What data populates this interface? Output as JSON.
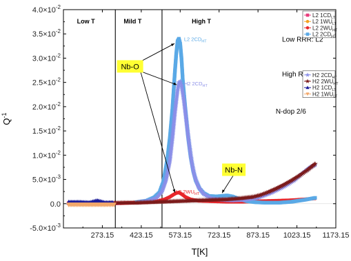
{
  "chart_data": {
    "type": "scatter",
    "xlabel": "T[K]",
    "ylabel": "Q",
    "ylabel_sup": "-1",
    "xlim": [
      123.15,
      1173.15
    ],
    "ylim": [
      -0.005,
      0.04
    ],
    "x_ticks": [
      273.15,
      423.15,
      573.15,
      723.15,
      873.15,
      1023.15,
      1173.15
    ],
    "x_tick_labels": [
      "273.15",
      "423.15",
      "573.15",
      "723.15",
      "873.15",
      "1023.15",
      "1173.15"
    ],
    "y_ticks": [
      {
        "value": -0.005,
        "mant": "-5.0×10",
        "exp": "-3"
      },
      {
        "value": 0.0,
        "mant": "0.0",
        "exp": ""
      },
      {
        "value": 0.005,
        "mant": "5.0×10",
        "exp": "-3"
      },
      {
        "value": 0.01,
        "mant": "1.0×10",
        "exp": "-2"
      },
      {
        "value": 0.015,
        "mant": "1.5×10",
        "exp": "-2"
      },
      {
        "value": 0.02,
        "mant": "2.0×10",
        "exp": "-2"
      },
      {
        "value": 0.025,
        "mant": "2.5×10",
        "exp": "-2"
      },
      {
        "value": 0.03,
        "mant": "3.0×10",
        "exp": "-2"
      },
      {
        "value": 0.035,
        "mant": "3.5×10",
        "exp": "-2"
      },
      {
        "value": 0.04,
        "mant": "4.0×10",
        "exp": "-2"
      }
    ],
    "region_dividers": [
      323.15,
      503.15
    ],
    "regions": [
      {
        "label": "Low T",
        "x": 210
      },
      {
        "label": "Mild T",
        "x": 390
      },
      {
        "label": "High T",
        "x": 655
      }
    ],
    "notes": [
      {
        "text": "Low RRR: L2",
        "x": 1045,
        "y": 0.0334
      },
      {
        "text": "High RRR: H2",
        "x": 1050,
        "y": 0.0262
      },
      {
        "text": "N-dop 2/6",
        "x": 1000,
        "y": 0.0186
      }
    ],
    "callouts": [
      {
        "text": "Nb-O",
        "x": 380,
        "y": 0.0283
      },
      {
        "text": "Nb-N",
        "x": 780,
        "y": 0.007
      }
    ],
    "series_annotations": [
      {
        "main": "L2 2CD",
        "sub": "HT",
        "x": 572,
        "y": 0.034,
        "color": "#5aa9e6"
      },
      {
        "main": "H2 2CD",
        "sub": "HT",
        "x": 572,
        "y": 0.0248,
        "color": "#8b8fe8"
      },
      {
        "main": "L2 2WU",
        "sub": "HT",
        "x": 540,
        "y": 0.0025,
        "color": "#e8262b"
      }
    ],
    "series": [
      {
        "name": "L2 1CD",
        "sub": "LT",
        "color": "#e83c7c",
        "marker": "square",
        "x": [
          143.15,
          173.15,
          213.15,
          253.15,
          293.15,
          333.15
        ],
        "y": [
          0.0001,
          0.0001,
          0.0001,
          0.0002,
          0.0001,
          0.0001
        ]
      },
      {
        "name": "L2 1WU",
        "sub": "LT",
        "color": "#f4a01f",
        "marker": "circle",
        "x": [
          143.15,
          183.15,
          223.15,
          263.15,
          303.15
        ],
        "y": [
          0.0,
          0.0001,
          0.0001,
          0.0001,
          0.0001
        ]
      },
      {
        "name": "L2 2WU",
        "sub": "HT",
        "color": "#e8262b",
        "marker": "circle",
        "x": [
          343.15,
          393.15,
          443.15,
          483.15,
          513.15,
          533.15,
          548.15,
          558.15,
          568.15,
          578.15,
          593.15,
          613.15,
          643.15,
          693.15,
          753.15,
          813.15,
          873.15,
          933.15,
          993.15,
          1053.15,
          1093.15
        ],
        "y": [
          0.0001,
          0.0002,
          0.0003,
          0.0005,
          0.0009,
          0.0014,
          0.0019,
          0.0022,
          0.0023,
          0.002,
          0.0014,
          0.0009,
          0.0006,
          0.0005,
          0.0004,
          0.0004,
          0.0005,
          0.0006,
          0.0007,
          0.0009,
          0.0011
        ]
      },
      {
        "name": "L2 2CD",
        "sub": "HT",
        "color": "#5aa9e6",
        "marker": "square",
        "x": [
          403.15,
          443.15,
          473.15,
          493.15,
          508.15,
          523.15,
          533.15,
          543.15,
          548.15,
          553.15,
          558.15,
          563.15,
          568.15,
          573.15,
          578.15,
          583.15,
          593.15,
          603.15,
          613.15,
          623.15,
          633.15,
          648.15,
          663.15,
          683.15,
          713.15,
          733.15,
          753.15,
          773.15,
          793.15,
          813.15,
          833.15,
          863.15,
          903.15,
          953.15,
          1003.15,
          1053.15,
          1093.15
        ],
        "y": [
          0.0003,
          0.0006,
          0.0013,
          0.0023,
          0.0045,
          0.009,
          0.0135,
          0.0195,
          0.0235,
          0.0275,
          0.031,
          0.0335,
          0.034,
          0.033,
          0.03,
          0.0255,
          0.0195,
          0.014,
          0.0098,
          0.0068,
          0.0048,
          0.0031,
          0.0022,
          0.0016,
          0.0015,
          0.0016,
          0.0017,
          0.0015,
          0.0011,
          0.0008,
          0.0005,
          0.0003,
          0.0002,
          0.0002,
          0.0004,
          0.0008,
          0.0012
        ]
      },
      {
        "name": "H2 2CD",
        "sub": "HT",
        "color": "#8b8fe8",
        "marker": "star",
        "x": [
          413.15,
          453.15,
          483.15,
          503.15,
          518.15,
          533.15,
          543.15,
          553.15,
          563.15,
          568.15,
          573.15,
          578.15,
          588.15,
          598.15,
          608.15,
          618.15,
          628.15,
          643.15,
          663.15,
          693.15,
          733.15,
          773.15,
          823.15,
          873.15,
          923.15,
          973.15,
          1013.15,
          1043.15,
          1073.15,
          1093.15
        ],
        "y": [
          0.0003,
          0.0006,
          0.0012,
          0.0025,
          0.0048,
          0.0088,
          0.0135,
          0.019,
          0.0235,
          0.025,
          0.0252,
          0.0245,
          0.021,
          0.0165,
          0.0122,
          0.0085,
          0.0058,
          0.0035,
          0.002,
          0.0011,
          0.0008,
          0.0007,
          0.0008,
          0.0012,
          0.0022,
          0.0035,
          0.0048,
          0.0062,
          0.0075,
          0.008
        ]
      },
      {
        "name": "H2 2WU",
        "sub": "HT",
        "color": "#7b1a1a",
        "marker": "star",
        "x": [
          303.15,
          353.15,
          403.15,
          453.15,
          503.15,
          553.15,
          603.15,
          653.15,
          703.15,
          753.15,
          803.15,
          853.15,
          883.15,
          913.15,
          943.15,
          973.15,
          1003.15,
          1033.15,
          1063.15,
          1093.15
        ],
        "y": [
          0.0001,
          0.0002,
          0.0002,
          0.0003,
          0.0004,
          0.0005,
          0.0006,
          0.0007,
          0.0008,
          0.0009,
          0.0011,
          0.0014,
          0.0018,
          0.0024,
          0.0031,
          0.0039,
          0.0048,
          0.0058,
          0.0069,
          0.0082
        ]
      },
      {
        "name": "H2 1CD",
        "sub": "LT",
        "color": "#1a1a99",
        "marker": "triangle-up",
        "x": [
          143.15,
          183.15,
          223.15,
          253.15,
          283.15,
          313.15
        ],
        "y": [
          0.0003,
          0.0003,
          0.0002,
          0.0006,
          0.0002,
          0.0002
        ]
      },
      {
        "name": "H2 1WU",
        "sub": "LT",
        "color": "#f2a76a",
        "marker": "triangle-down",
        "x": [
          143.15,
          178.15,
          213.15,
          253.15,
          293.15,
          318.15
        ],
        "y": [
          -0.0002,
          -0.0002,
          -0.0002,
          -0.0002,
          -0.0002,
          -0.0002
        ]
      }
    ]
  }
}
